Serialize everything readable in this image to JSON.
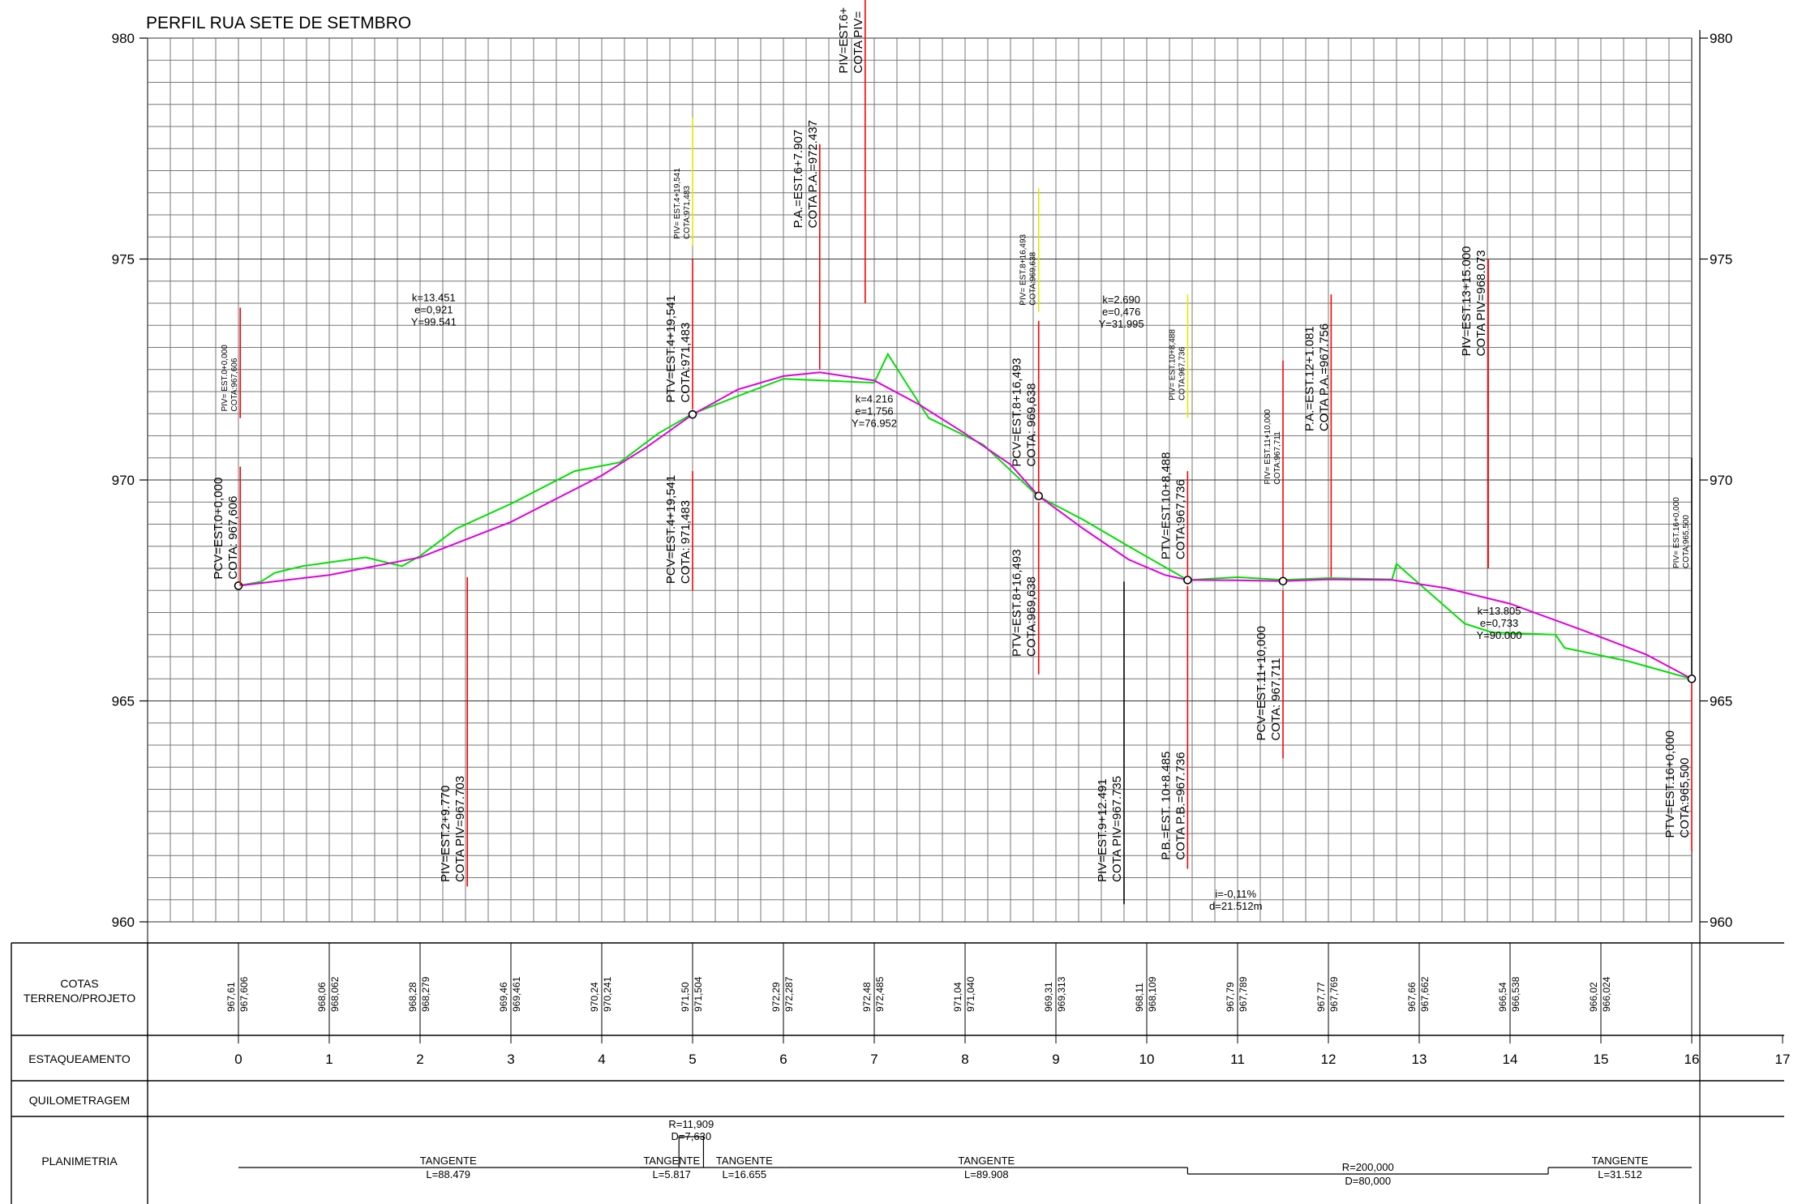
{
  "title": "PERFIL RUA SETE DE SETMBRO",
  "y_axis": {
    "ticks": [
      "980",
      "975",
      "970",
      "965",
      "960"
    ],
    "values": [
      980,
      975,
      970,
      965,
      960
    ],
    "min": 960,
    "max": 980
  },
  "stations": [
    "0",
    "1",
    "2",
    "3",
    "4",
    "5",
    "6",
    "7",
    "8",
    "9",
    "10",
    "11",
    "12",
    "13",
    "14",
    "15",
    "16",
    "17"
  ],
  "row_labels": {
    "cotas": [
      "COTAS",
      "TERRENO/PROJETO"
    ],
    "estaqueamento": "ESTAQUEAMENTO",
    "quilometragem": "QUILOMETRAGEM",
    "planimetria": "PLANIMETRIA"
  },
  "cotas": [
    {
      "st": 0,
      "terreno": "967,61",
      "projeto": "967,606"
    },
    {
      "st": 1,
      "terreno": "968,06",
      "projeto": "968,062"
    },
    {
      "st": 2,
      "terreno": "968,28",
      "projeto": "968,279"
    },
    {
      "st": 3,
      "terreno": "969,46",
      "projeto": "969,461"
    },
    {
      "st": 4,
      "terreno": "970,24",
      "projeto": "970,241"
    },
    {
      "st": 5,
      "terreno": "971,50",
      "projeto": "971,504"
    },
    {
      "st": 6,
      "terreno": "972,29",
      "projeto": "972,287"
    },
    {
      "st": 7,
      "terreno": "972,48",
      "projeto": "972,485"
    },
    {
      "st": 8,
      "terreno": "971,04",
      "projeto": "971,040"
    },
    {
      "st": 9,
      "terreno": "969,31",
      "projeto": "969,313"
    },
    {
      "st": 10,
      "terreno": "968,11",
      "projeto": "968,109"
    },
    {
      "st": 11,
      "terreno": "967,79",
      "projeto": "967,789"
    },
    {
      "st": 12,
      "terreno": "967,77",
      "projeto": "967,769"
    },
    {
      "st": 13,
      "terreno": "967,66",
      "projeto": "967,662"
    },
    {
      "st": 14,
      "terreno": "966,54",
      "projeto": "966,538"
    },
    {
      "st": 15,
      "terreno": "966,02",
      "projeto": "966,024"
    }
  ],
  "planimetria": [
    {
      "from": 0,
      "to": 4.62,
      "label": "TANGENTE",
      "detail": "L=88.479",
      "curve": false
    },
    {
      "from": 4.42,
      "to": 5.12,
      "label": "TANGENTE",
      "detail": "L=5.817",
      "curve": false
    },
    {
      "from": 5.12,
      "to": 6.02,
      "label": "TANGENTE",
      "detail": "L=16.655",
      "curve": false
    },
    {
      "from": 6.02,
      "to": 10.45,
      "label": "TANGENTE",
      "detail": "L=89.908",
      "curve": false
    },
    {
      "from": 10.45,
      "to": 14.42,
      "label": "R=200,000",
      "detail": "D=80,000",
      "curve": true
    },
    {
      "from": 14.42,
      "to": 16,
      "label": "TANGENTE",
      "detail": "L=31.512",
      "curve": false
    }
  ],
  "small_curve": {
    "label": "R=11,909",
    "detail": "D=7,630"
  },
  "chart_data": {
    "type": "line",
    "title": "PERFIL RUA SETE DE SETMBRO",
    "x_unit": "estaca",
    "ylim": [
      960,
      980
    ],
    "xlim": [
      0,
      17
    ],
    "grid": true,
    "series": [
      {
        "role": "terreno",
        "color": "#00e000",
        "points": [
          [
            0,
            967.606
          ],
          [
            0.25,
            967.7
          ],
          [
            0.4,
            967.9
          ],
          [
            0.7,
            968.05
          ],
          [
            1.4,
            968.25
          ],
          [
            1.8,
            968.05
          ],
          [
            2.0,
            968.28
          ],
          [
            2.4,
            968.9
          ],
          [
            3.0,
            969.46
          ],
          [
            3.7,
            970.2
          ],
          [
            4.2,
            970.4
          ],
          [
            4.62,
            971.05
          ],
          [
            5.0,
            971.5
          ],
          [
            5.5,
            971.9
          ],
          [
            6.0,
            972.29
          ],
          [
            7.0,
            972.2
          ],
          [
            7.15,
            972.85
          ],
          [
            7.35,
            972.2
          ],
          [
            7.6,
            971.4
          ],
          [
            8.2,
            970.8
          ],
          [
            8.8,
            969.638
          ],
          [
            9.3,
            969.1
          ],
          [
            9.8,
            968.5
          ],
          [
            10.45,
            967.736
          ],
          [
            11.0,
            967.8
          ],
          [
            11.5,
            967.74
          ],
          [
            12.0,
            967.78
          ],
          [
            12.7,
            967.75
          ],
          [
            12.75,
            968.1
          ],
          [
            13.5,
            966.75
          ],
          [
            13.8,
            966.55
          ],
          [
            14.5,
            966.5
          ],
          [
            14.6,
            966.2
          ],
          [
            15.3,
            965.9
          ],
          [
            16.0,
            965.5
          ]
        ]
      },
      {
        "role": "projeto",
        "color": "#e000e0",
        "points": [
          [
            0,
            967.606
          ],
          [
            1.0,
            967.85
          ],
          [
            2.0,
            968.25
          ],
          [
            3.0,
            969.05
          ],
          [
            4.0,
            970.1
          ],
          [
            4.5,
            970.75
          ],
          [
            5.0,
            971.483
          ],
          [
            5.5,
            972.05
          ],
          [
            6.0,
            972.35
          ],
          [
            6.4,
            972.437
          ],
          [
            7.0,
            972.25
          ],
          [
            7.5,
            971.7
          ],
          [
            8.0,
            971.05
          ],
          [
            8.5,
            970.35
          ],
          [
            8.81,
            969.638
          ],
          [
            9.3,
            968.9
          ],
          [
            9.8,
            968.2
          ],
          [
            10.2,
            967.85
          ],
          [
            10.45,
            967.736
          ],
          [
            11.0,
            967.73
          ],
          [
            11.5,
            967.711
          ],
          [
            12.0,
            967.75
          ],
          [
            12.7,
            967.74
          ],
          [
            13.3,
            967.55
          ],
          [
            14.0,
            967.2
          ],
          [
            14.8,
            966.6
          ],
          [
            15.5,
            966.05
          ],
          [
            16.0,
            965.5
          ]
        ]
      }
    ],
    "vertices": [
      0,
      5.0,
      8.81,
      10.45,
      11.5,
      16.0
    ]
  },
  "annotations": [
    {
      "x": 0.02,
      "top": 970.3,
      "bottom": 967.6,
      "color": "#ff0000",
      "size": 15,
      "lines": [
        "PCV=EST.0+0,000",
        "COTA: 967,606"
      ]
    },
    {
      "x": 0.02,
      "top": 973.9,
      "bottom": 971.4,
      "color": "#ff0000",
      "size": 10,
      "lines": [
        "PIV= EST.0+0,000",
        "COTA:967,606"
      ]
    },
    {
      "x": 2.52,
      "top": 967.8,
      "bottom": 960.8,
      "color": "#ff0000",
      "size": 15,
      "lines": [
        "PIV=EST.2+9.770",
        "COTA PIV=967.703"
      ],
      "text_at": 960.9
    },
    {
      "x": 5.0,
      "top": 970.2,
      "bottom": 967.5,
      "color": "#ff0000",
      "size": 15,
      "lines": [
        "PCV=EST.4+19,541",
        "COTA: 971,483"
      ]
    },
    {
      "x": 5.0,
      "top": 975.0,
      "bottom": 971.6,
      "color": "#ff0000",
      "size": 15,
      "lines": [
        "PTV=EST.4+19,541",
        "COTA:971,483"
      ]
    },
    {
      "x": 5.0,
      "top": 978.2,
      "bottom": 975.3,
      "color": "#e6e600",
      "size": 10,
      "lines": [
        "PIV= EST.4+19,541",
        "COTA:971,483"
      ]
    },
    {
      "x": 6.4,
      "top": 977.6,
      "bottom": 972.5,
      "color": "#ff0000",
      "size": 15,
      "lines": [
        "P.A.=EST.6+7.907",
        "COTA P.A.=972.437"
      ],
      "text_at": 975.7
    },
    {
      "x": 6.9,
      "top": 981.0,
      "bottom": 974.0,
      "color": "#ff0000",
      "size": 15,
      "lines": [
        "PIV=EST.6+",
        "COTA PIV="
      ],
      "text_at": 979.2
    },
    {
      "x": 8.81,
      "top": 973.6,
      "bottom": 969.7,
      "color": "#ff0000",
      "size": 15,
      "lines": [
        "PCV=EST.8+16,493",
        "COTA: 969,638"
      ],
      "text_at": 970.3
    },
    {
      "x": 8.81,
      "top": 976.6,
      "bottom": 973.8,
      "color": "#e6e600",
      "size": 10,
      "lines": [
        "PIV= EST.8+16,493",
        "COTA:969,638"
      ]
    },
    {
      "x": 8.81,
      "top": 969.5,
      "bottom": 965.6,
      "color": "#ff0000",
      "size": 15,
      "lines": [
        "PTV=EST.8+16,493",
        "COTA:969,638"
      ],
      "text_at": 966.0
    },
    {
      "x": 9.75,
      "top": 967.7,
      "bottom": 960.4,
      "color": "#000000",
      "size": 15,
      "lines": [
        "PIV=EST.9+12.491",
        "COTA PIV=967.735"
      ],
      "text_at": 960.9
    },
    {
      "x": 10.45,
      "top": 970.2,
      "bottom": 967.8,
      "color": "#ff0000",
      "size": 15,
      "lines": [
        "PTV=EST.10+8,488",
        "COTA:967,736"
      ],
      "text_at": 968.2
    },
    {
      "x": 10.45,
      "top": 974.2,
      "bottom": 971.4,
      "color": "#e6e600",
      "size": 10,
      "lines": [
        "PIV= EST.10+8,488",
        "COTA:967,736"
      ],
      "text_at": 971.8
    },
    {
      "x": 10.45,
      "top": 967.6,
      "bottom": 961.2,
      "color": "#ff0000",
      "size": 15,
      "lines": [
        "P.B.=EST. 10+8.485",
        "COTA P.B.=967.736"
      ],
      "text_at": 961.4
    },
    {
      "x": 11.5,
      "top": 972.7,
      "bottom": 967.8,
      "color": "#ff0000",
      "size": 10,
      "lines": [
        "PIV= EST.11+10,000",
        "COTA:967,711"
      ],
      "text_at": 969.9
    },
    {
      "x": 11.5,
      "top": 967.5,
      "bottom": 963.7,
      "color": "#ff0000",
      "size": 15,
      "lines": [
        "PCV=EST.11+10,000",
        "COTA: 967,711"
      ],
      "text_at": 964.1
    },
    {
      "x": 12.03,
      "top": 974.2,
      "bottom": 967.8,
      "color": "#ff0000",
      "size": 15,
      "lines": [
        "P.A.=EST.12+1.081",
        "COTA P.A.=967.756"
      ],
      "text_at": 971.1
    },
    {
      "x": 13.76,
      "top": 975.0,
      "bottom": 968.0,
      "color": "#ff0000",
      "size": 15,
      "lines": [
        "PIV=EST.13+15.000",
        "COTA PIV=968.073"
      ],
      "text_at": 972.8
    },
    {
      "x": 16.0,
      "top": 970.5,
      "bottom": 965.6,
      "color": "#000000",
      "size": 10,
      "lines": [
        "PIV= EST.16+0,000",
        "COTA:965,500"
      ],
      "text_at": 968.0
    },
    {
      "x": 16.0,
      "top": 965.4,
      "bottom": 961.6,
      "color": "#ff0000",
      "size": 15,
      "lines": [
        "PTV=EST.16+0,000",
        "COTA:965,500"
      ],
      "text_at": 961.9
    }
  ],
  "curve_params": [
    {
      "x": 2.15,
      "y": 974.05,
      "lines": [
        "k=13.451",
        "e=0,921",
        "Y=99.541"
      ]
    },
    {
      "x": 7.0,
      "y": 971.75,
      "lines": [
        "k=4.216",
        "e=1,756",
        "Y=76.952"
      ]
    },
    {
      "x": 9.72,
      "y": 974.0,
      "lines": [
        "k=2.690",
        "e=0,476",
        "Y=31.995"
      ]
    },
    {
      "x": 13.88,
      "y": 966.95,
      "lines": [
        "k=13.805",
        "e=0,733",
        "Y=90.000"
      ]
    }
  ],
  "grade_label": [
    "i=-0,11%",
    "d=21.512m"
  ]
}
